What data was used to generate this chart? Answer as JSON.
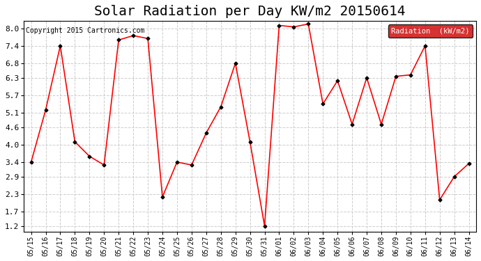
{
  "title": "Solar Radiation per Day KW/m2 20150614",
  "copyright_text": "Copyright 2015 Cartronics.com",
  "legend_label": "Radiation  (kW/m2)",
  "dates": [
    "05/15",
    "05/16",
    "05/17",
    "05/18",
    "05/19",
    "05/20",
    "05/21",
    "05/22",
    "05/23",
    "05/24",
    "05/25",
    "05/26",
    "05/27",
    "05/28",
    "05/29",
    "05/30",
    "05/31",
    "06/01",
    "06/02",
    "06/03",
    "06/04",
    "06/05",
    "06/06",
    "06/07",
    "06/08",
    "06/09",
    "06/10",
    "06/11",
    "06/12",
    "06/13",
    "06/14"
  ],
  "values": [
    3.4,
    5.2,
    7.4,
    4.1,
    3.6,
    3.3,
    7.6,
    7.75,
    7.65,
    2.2,
    3.4,
    3.3,
    4.4,
    5.3,
    6.8,
    4.1,
    1.2,
    8.1,
    8.05,
    8.15,
    5.4,
    6.2,
    4.7,
    6.3,
    4.7,
    6.35,
    6.4,
    7.4,
    2.1,
    2.9,
    3.35
  ],
  "line_color": "#ff0000",
  "marker_color": "#000000",
  "bg_color": "#ffffff",
  "grid_color": "#cccccc",
  "yticks": [
    1.2,
    1.7,
    2.3,
    2.9,
    3.4,
    4.0,
    4.6,
    5.1,
    5.7,
    6.3,
    6.8,
    7.4,
    8.0
  ],
  "ymin": 1.0,
  "ymax": 8.25,
  "title_fontsize": 14,
  "legend_bg": "#cc0000",
  "legend_text_color": "#ffffff"
}
